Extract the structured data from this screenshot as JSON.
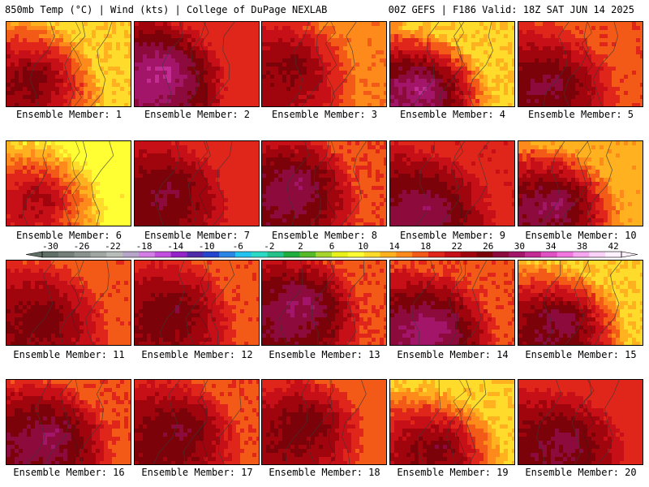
{
  "header": {
    "left": "850mb Temp (°C) | Wind (kts) | College of DuPage NEXLAB",
    "right": "00Z GEFS | F186 Valid: 18Z SAT JUN 14 2025"
  },
  "colors": {
    "background": "#ffffff",
    "border": "#000000",
    "contour": "#3a3a3a"
  },
  "chart_data": {
    "type": "heatmap",
    "title": "850mb Temp (°C) | Wind (kts)",
    "model": "00Z GEFS",
    "forecast_hour": "F186",
    "valid": "18Z SAT JUN 14 2025",
    "source": "College of DuPage NEXLAB",
    "colorbar": {
      "tick_labels": [
        "-30",
        "-26",
        "-22",
        "-18",
        "-14",
        "-10",
        "-6",
        "-2",
        "2",
        "6",
        "10",
        "14",
        "18",
        "22",
        "26",
        "30",
        "34",
        "38",
        "42"
      ],
      "min": -30,
      "max": 42,
      "step": 2,
      "colors": [
        "#5f6f66",
        "#737f78",
        "#8a938d",
        "#a0a7a2",
        "#b8bdb9",
        "#b6a6c9",
        "#d47de6",
        "#c24fe0",
        "#9322c8",
        "#4e2aa8",
        "#2545cf",
        "#2b85e6",
        "#22c3ee",
        "#2ad9c6",
        "#22c28a",
        "#1fae3e",
        "#55b928",
        "#a5d42a",
        "#e8f218",
        "#ffff33",
        "#ffdb2c",
        "#ffb11f",
        "#ff8a1c",
        "#f35a17",
        "#e0261a",
        "#c60f16",
        "#a0050e",
        "#7a0208",
        "#8c0a3c",
        "#a31568",
        "#c22c93",
        "#e052c4",
        "#f276e0",
        "#f7a6ef",
        "#fbd2f8",
        "#fff0fd"
      ]
    },
    "members": [
      {
        "label": "Ensemble Member: 1",
        "max_temp_c": 29,
        "min_temp_c": 11
      },
      {
        "label": "Ensemble Member: 2",
        "max_temp_c": 34,
        "min_temp_c": 18
      },
      {
        "label": "Ensemble Member: 3",
        "max_temp_c": 28,
        "min_temp_c": 15
      },
      {
        "label": "Ensemble Member: 4",
        "max_temp_c": 34,
        "min_temp_c": 11
      },
      {
        "label": "Ensemble Member: 5",
        "max_temp_c": 29,
        "min_temp_c": 17
      },
      {
        "label": "Ensemble Member: 6",
        "max_temp_c": 27,
        "min_temp_c": 8
      },
      {
        "label": "Ensemble Member: 7",
        "max_temp_c": 29,
        "min_temp_c": 18
      },
      {
        "label": "Ensemble Member: 8",
        "max_temp_c": 32,
        "min_temp_c": 17
      },
      {
        "label": "Ensemble Member: 9",
        "max_temp_c": 30,
        "min_temp_c": 19
      },
      {
        "label": "Ensemble Member: 10",
        "max_temp_c": 33,
        "min_temp_c": 12
      },
      {
        "label": "Ensemble Member: 11",
        "max_temp_c": 28,
        "min_temp_c": 17
      },
      {
        "label": "Ensemble Member: 12",
        "max_temp_c": 29,
        "min_temp_c": 17
      },
      {
        "label": "Ensemble Member: 13",
        "max_temp_c": 33,
        "min_temp_c": 17
      },
      {
        "label": "Ensemble Member: 14",
        "max_temp_c": 33,
        "min_temp_c": 17
      },
      {
        "label": "Ensemble Member: 15",
        "max_temp_c": 33,
        "min_temp_c": 11
      },
      {
        "label": "Ensemble Member: 16",
        "max_temp_c": 32,
        "min_temp_c": 17
      },
      {
        "label": "Ensemble Member: 17",
        "max_temp_c": 30,
        "min_temp_c": 17
      },
      {
        "label": "Ensemble Member: 18",
        "max_temp_c": 30,
        "min_temp_c": 16
      },
      {
        "label": "Ensemble Member: 19",
        "max_temp_c": 30,
        "min_temp_c": 11
      },
      {
        "label": "Ensemble Member: 20",
        "max_temp_c": 30,
        "min_temp_c": 18
      }
    ]
  }
}
